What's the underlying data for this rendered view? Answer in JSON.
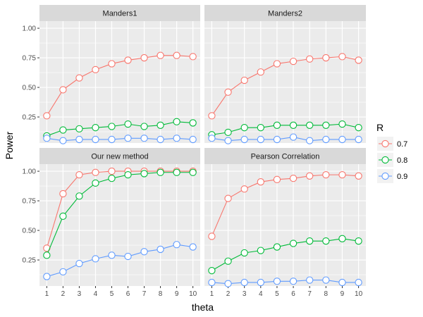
{
  "chart_data": {
    "type": "line",
    "xlabel": "theta",
    "ylabel": "Power",
    "ylim": [
      0.03,
      1.06
    ],
    "yticks": [
      0.25,
      0.5,
      0.75,
      1.0
    ],
    "ytick_labels": [
      "0.25",
      "0.50",
      "0.75",
      "1.00"
    ],
    "x": [
      1,
      2,
      3,
      4,
      5,
      6,
      7,
      8,
      9,
      10
    ],
    "xtick_labels": [
      "1",
      "2",
      "3",
      "4",
      "5",
      "6",
      "7",
      "8",
      "9",
      "10"
    ],
    "legend": {
      "title": "R",
      "placement": "right",
      "entries": [
        {
          "label": "0.7",
          "color": "#F8766D"
        },
        {
          "label": "0.8",
          "color": "#00BA38"
        },
        {
          "label": "0.9",
          "color": "#619CFF"
        }
      ]
    },
    "panels": [
      {
        "title": "Manders1",
        "series": [
          {
            "name": "0.7",
            "values": [
              0.26,
              0.48,
              0.58,
              0.65,
              0.7,
              0.73,
              0.75,
              0.77,
              0.77,
              0.76
            ]
          },
          {
            "name": "0.8",
            "values": [
              0.09,
              0.14,
              0.15,
              0.16,
              0.17,
              0.19,
              0.17,
              0.18,
              0.21,
              0.2
            ]
          },
          {
            "name": "0.9",
            "values": [
              0.07,
              0.05,
              0.06,
              0.06,
              0.06,
              0.07,
              0.07,
              0.06,
              0.07,
              0.06
            ]
          }
        ]
      },
      {
        "title": "Manders2",
        "series": [
          {
            "name": "0.7",
            "values": [
              0.26,
              0.46,
              0.56,
              0.63,
              0.7,
              0.72,
              0.74,
              0.75,
              0.76,
              0.73
            ]
          },
          {
            "name": "0.8",
            "values": [
              0.1,
              0.12,
              0.16,
              0.16,
              0.18,
              0.18,
              0.18,
              0.18,
              0.19,
              0.16
            ]
          },
          {
            "name": "0.9",
            "values": [
              0.07,
              0.05,
              0.06,
              0.06,
              0.06,
              0.08,
              0.05,
              0.06,
              0.06,
              0.06
            ]
          }
        ]
      },
      {
        "title": "Our new method",
        "series": [
          {
            "name": "0.7",
            "values": [
              0.35,
              0.81,
              0.97,
              0.99,
              1.0,
              1.0,
              1.0,
              1.0,
              1.0,
              1.0
            ]
          },
          {
            "name": "0.8",
            "values": [
              0.29,
              0.62,
              0.79,
              0.9,
              0.94,
              0.97,
              0.98,
              0.99,
              0.99,
              0.99
            ]
          },
          {
            "name": "0.9",
            "values": [
              0.11,
              0.15,
              0.22,
              0.26,
              0.29,
              0.28,
              0.32,
              0.34,
              0.38,
              0.36
            ]
          }
        ]
      },
      {
        "title": "Pearson Correlation",
        "series": [
          {
            "name": "0.7",
            "values": [
              0.45,
              0.77,
              0.85,
              0.91,
              0.93,
              0.94,
              0.96,
              0.97,
              0.97,
              0.96
            ]
          },
          {
            "name": "0.8",
            "values": [
              0.16,
              0.24,
              0.31,
              0.33,
              0.36,
              0.39,
              0.41,
              0.41,
              0.43,
              0.41
            ]
          },
          {
            "name": "0.9",
            "values": [
              0.06,
              0.05,
              0.06,
              0.06,
              0.07,
              0.07,
              0.08,
              0.08,
              0.06,
              0.06
            ]
          }
        ]
      }
    ]
  }
}
